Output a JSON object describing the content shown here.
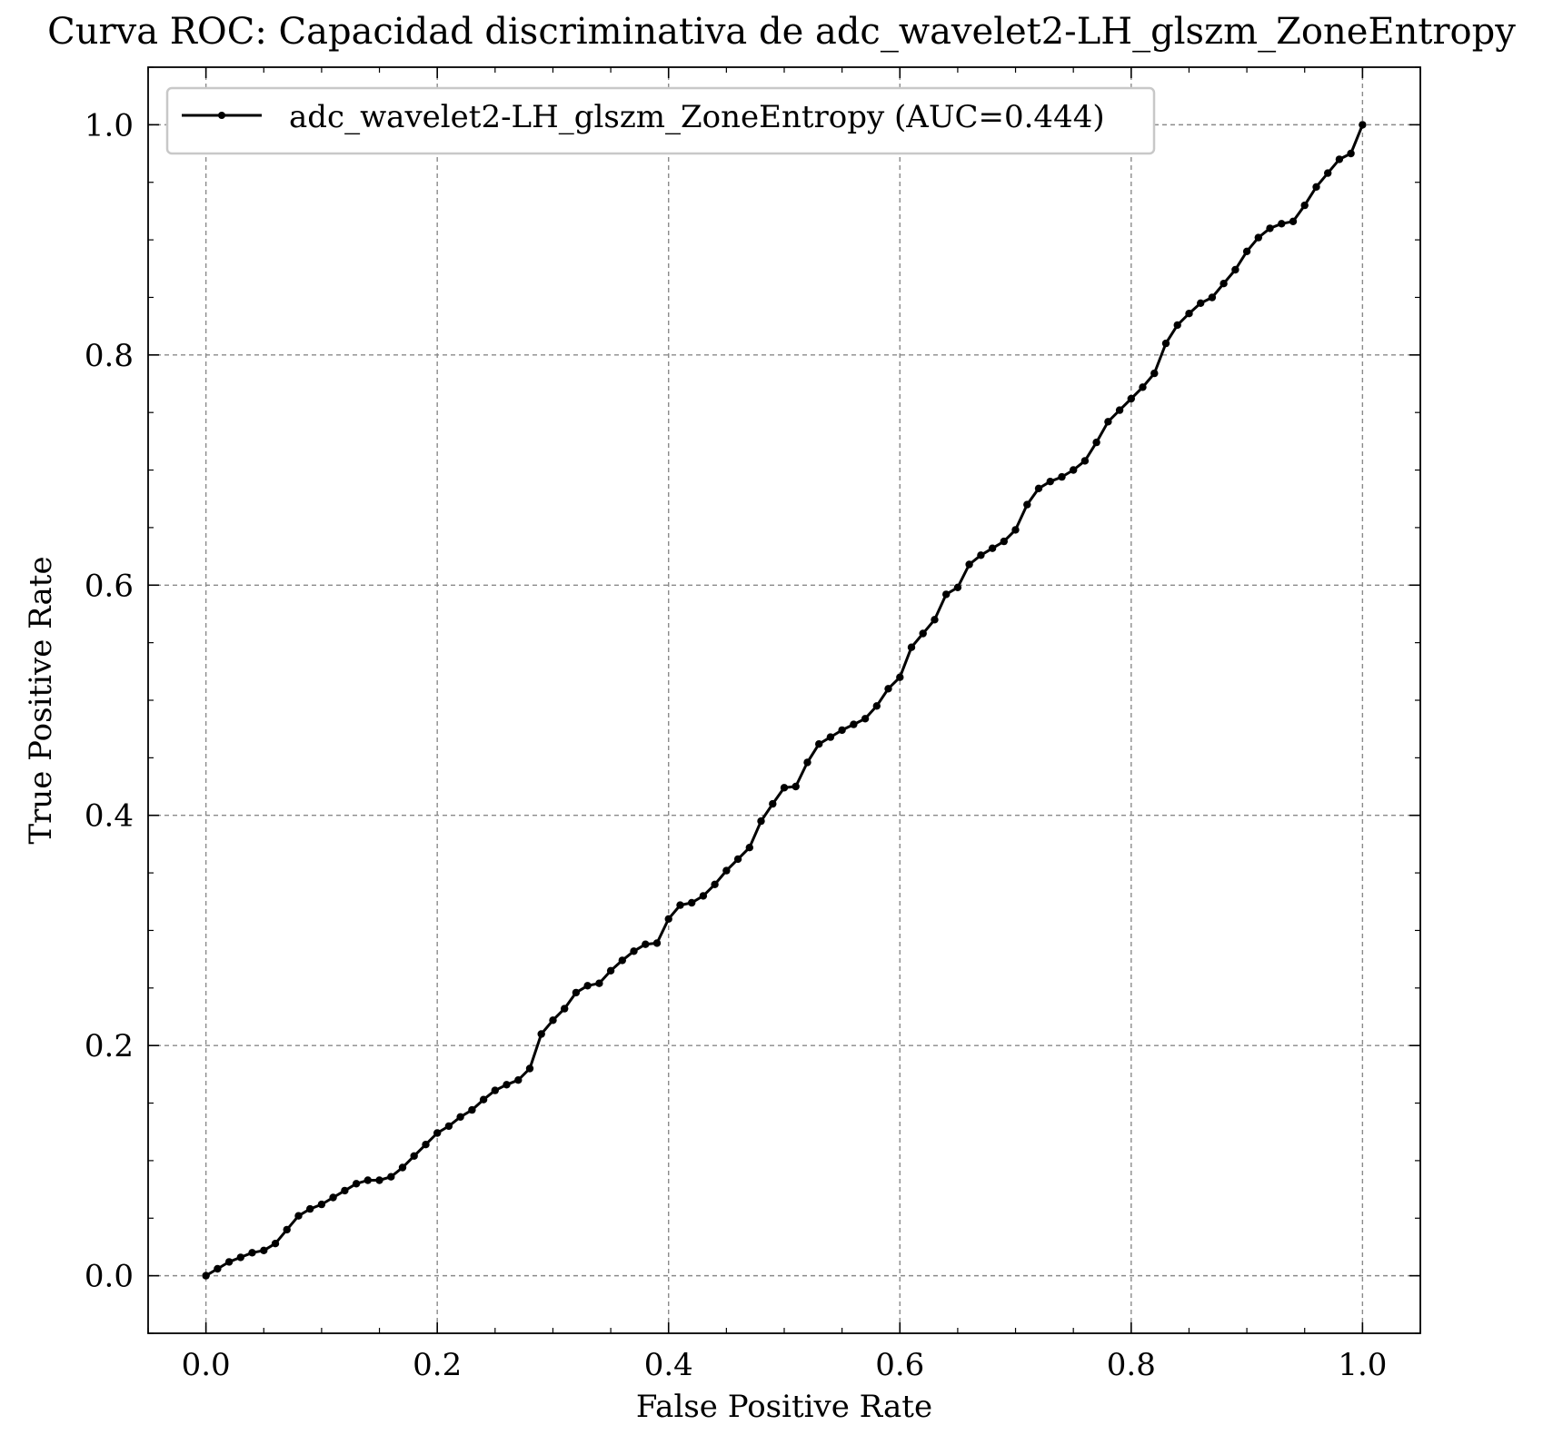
{
  "chart_data": {
    "type": "line",
    "title": "Curva ROC: Capacidad discriminativa de adc_wavelet2-LH_glszm_ZoneEntropy",
    "xlabel": "False Positive Rate",
    "ylabel": "True Positive Rate",
    "xlim": [
      -0.05,
      1.05
    ],
    "ylim": [
      -0.05,
      1.05
    ],
    "xticks": [
      "0.0",
      "0.2",
      "0.4",
      "0.6",
      "0.8",
      "1.0"
    ],
    "yticks": [
      "0.0",
      "0.2",
      "0.4",
      "0.6",
      "0.8",
      "1.0"
    ],
    "grid": true,
    "legend_position": "top-left",
    "series": [
      {
        "name": "adc_wavelet2-LH_glszm_ZoneEntropy (AUC=0.444)",
        "color": "#000000",
        "marker": "dot",
        "x": [
          0.0,
          0.01,
          0.02,
          0.03,
          0.04,
          0.05,
          0.06,
          0.07,
          0.08,
          0.09,
          0.1,
          0.11,
          0.12,
          0.13,
          0.14,
          0.15,
          0.16,
          0.17,
          0.18,
          0.19,
          0.2,
          0.21,
          0.22,
          0.23,
          0.24,
          0.25,
          0.26,
          0.27,
          0.28,
          0.29,
          0.3,
          0.31,
          0.32,
          0.33,
          0.34,
          0.35,
          0.36,
          0.37,
          0.38,
          0.39,
          0.4,
          0.41,
          0.42,
          0.43,
          0.44,
          0.45,
          0.46,
          0.47,
          0.48,
          0.49,
          0.5,
          0.51,
          0.52,
          0.53,
          0.54,
          0.55,
          0.56,
          0.57,
          0.58,
          0.59,
          0.6,
          0.61,
          0.62,
          0.63,
          0.64,
          0.65,
          0.66,
          0.67,
          0.68,
          0.69,
          0.7,
          0.71,
          0.72,
          0.73,
          0.74,
          0.75,
          0.76,
          0.77,
          0.78,
          0.79,
          0.8,
          0.81,
          0.82,
          0.83,
          0.84,
          0.85,
          0.86,
          0.87,
          0.88,
          0.89,
          0.9,
          0.91,
          0.92,
          0.93,
          0.94,
          0.95,
          0.96,
          0.97,
          0.98,
          0.99,
          1.0
        ],
        "y": [
          0.0,
          0.006,
          0.012,
          0.016,
          0.02,
          0.022,
          0.028,
          0.04,
          0.052,
          0.058,
          0.062,
          0.068,
          0.074,
          0.08,
          0.083,
          0.083,
          0.086,
          0.094,
          0.104,
          0.114,
          0.124,
          0.13,
          0.138,
          0.144,
          0.153,
          0.161,
          0.166,
          0.17,
          0.18,
          0.21,
          0.222,
          0.232,
          0.246,
          0.252,
          0.254,
          0.265,
          0.274,
          0.282,
          0.288,
          0.289,
          0.31,
          0.322,
          0.324,
          0.33,
          0.34,
          0.352,
          0.362,
          0.372,
          0.395,
          0.41,
          0.424,
          0.425,
          0.446,
          0.462,
          0.468,
          0.474,
          0.479,
          0.484,
          0.495,
          0.51,
          0.52,
          0.546,
          0.558,
          0.57,
          0.592,
          0.598,
          0.618,
          0.626,
          0.632,
          0.638,
          0.648,
          0.67,
          0.684,
          0.69,
          0.694,
          0.7,
          0.708,
          0.724,
          0.742,
          0.752,
          0.762,
          0.772,
          0.784,
          0.81,
          0.826,
          0.836,
          0.845,
          0.85,
          0.862,
          0.874,
          0.89,
          0.902,
          0.91,
          0.914,
          0.916,
          0.93,
          0.946,
          0.958,
          0.97,
          0.975,
          1.0
        ]
      }
    ]
  }
}
